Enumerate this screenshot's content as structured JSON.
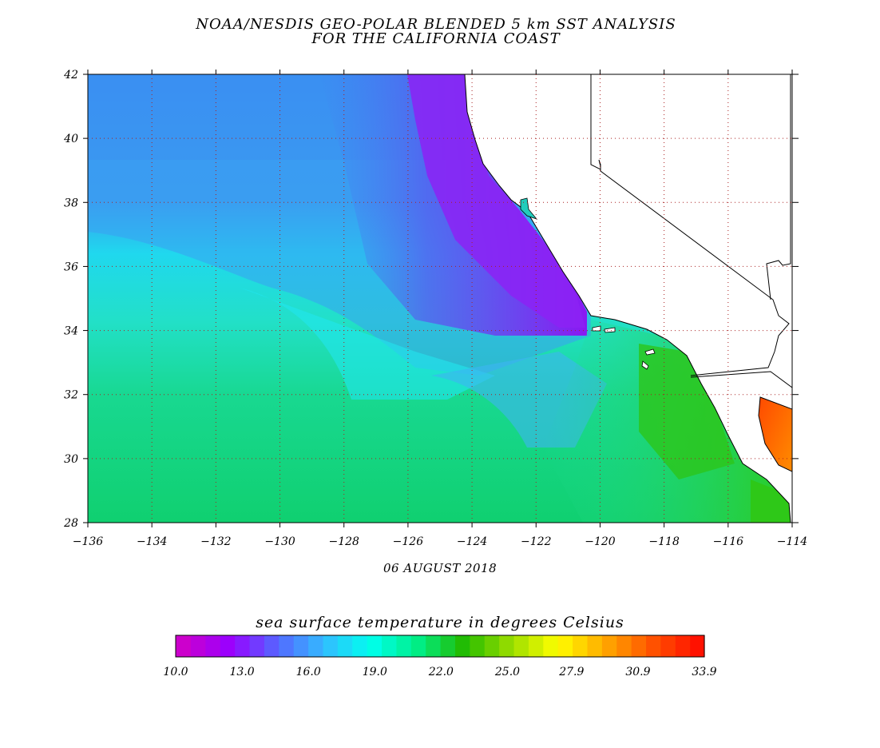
{
  "title": {
    "line1": "NOAA/NESDIS GEO-POLAR BLENDED 5 km SST ANALYSIS",
    "line2": "FOR THE CALIFORNIA COAST"
  },
  "date": "06 AUGUST 2018",
  "map": {
    "lon_ticks": [
      "-136",
      "-134",
      "-132",
      "-130",
      "-128",
      "-126",
      "-124",
      "-122",
      "-120",
      "-118",
      "-116",
      "-114"
    ],
    "lat_ticks": [
      "42",
      "40",
      "38",
      "36",
      "34",
      "32",
      "30",
      "28"
    ],
    "lon_range": [
      -136,
      -114
    ],
    "lat_range": [
      28,
      42
    ]
  },
  "colorbar": {
    "title": "sea surface temperature in degrees Celsius",
    "labels": [
      "10.0",
      "13.0",
      "16.0",
      "19.0",
      "22.0",
      "25.0",
      "27.9",
      "30.9",
      "33.9"
    ],
    "min": 10.0,
    "max": 33.9,
    "colors": [
      "#cc00cc",
      "#9900ff",
      "#5566ff",
      "#33bbff",
      "#00ffee",
      "#00ee88",
      "#22bb00",
      "#99dd00",
      "#ffff00",
      "#ffaa00",
      "#ff5500",
      "#ff1100"
    ]
  }
}
